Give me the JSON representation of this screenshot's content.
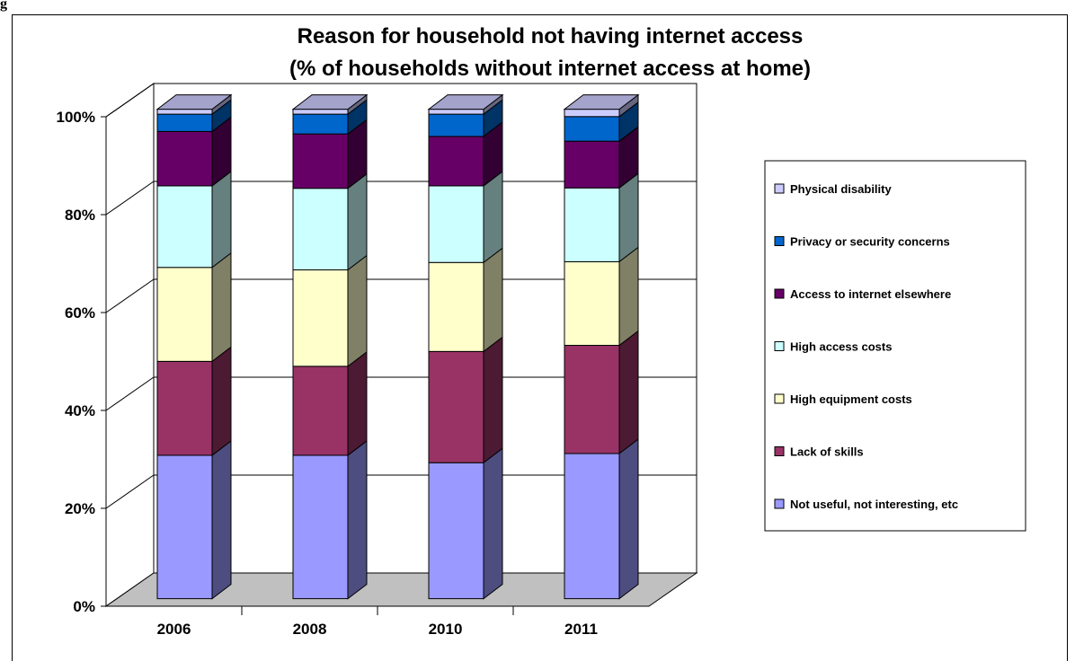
{
  "corner_label": "g",
  "chart_data": {
    "type": "bar",
    "stacked": true,
    "three_d": true,
    "title": [
      "Reason for household not having internet access",
      "(% of households without internet access at home)"
    ],
    "xlabel": "",
    "ylabel": "",
    "categories": [
      "2006",
      "2008",
      "2010",
      "2011"
    ],
    "ylim": [
      0,
      100
    ],
    "yticks": [
      "0%",
      "20%",
      "40%",
      "60%",
      "80%",
      "100%"
    ],
    "grid": true,
    "legend_position": "right",
    "series": [
      {
        "name": "Not useful, not interesting, etc",
        "color": "#9999ff",
        "values": [
          29,
          29,
          27.5,
          29.5
        ]
      },
      {
        "name": "Lack of skills",
        "color": "#993366",
        "values": [
          19,
          18,
          22.5,
          22
        ]
      },
      {
        "name": "High equipment costs",
        "color": "#ffffcc",
        "values": [
          19,
          19.5,
          18,
          17
        ]
      },
      {
        "name": "High access costs",
        "color": "#ccffff",
        "values": [
          16.5,
          16.5,
          15.5,
          15
        ]
      },
      {
        "name": "Access to internet elsewhere",
        "color": "#660066",
        "values": [
          11,
          11,
          10,
          9.5
        ]
      },
      {
        "name": "Privacy or security concerns",
        "color": "#0066cc",
        "values": [
          3.5,
          4,
          4.5,
          5
        ]
      },
      {
        "name": "Physical disability",
        "color": "#ccccff",
        "values": [
          1,
          1,
          1,
          1.5
        ]
      }
    ]
  }
}
